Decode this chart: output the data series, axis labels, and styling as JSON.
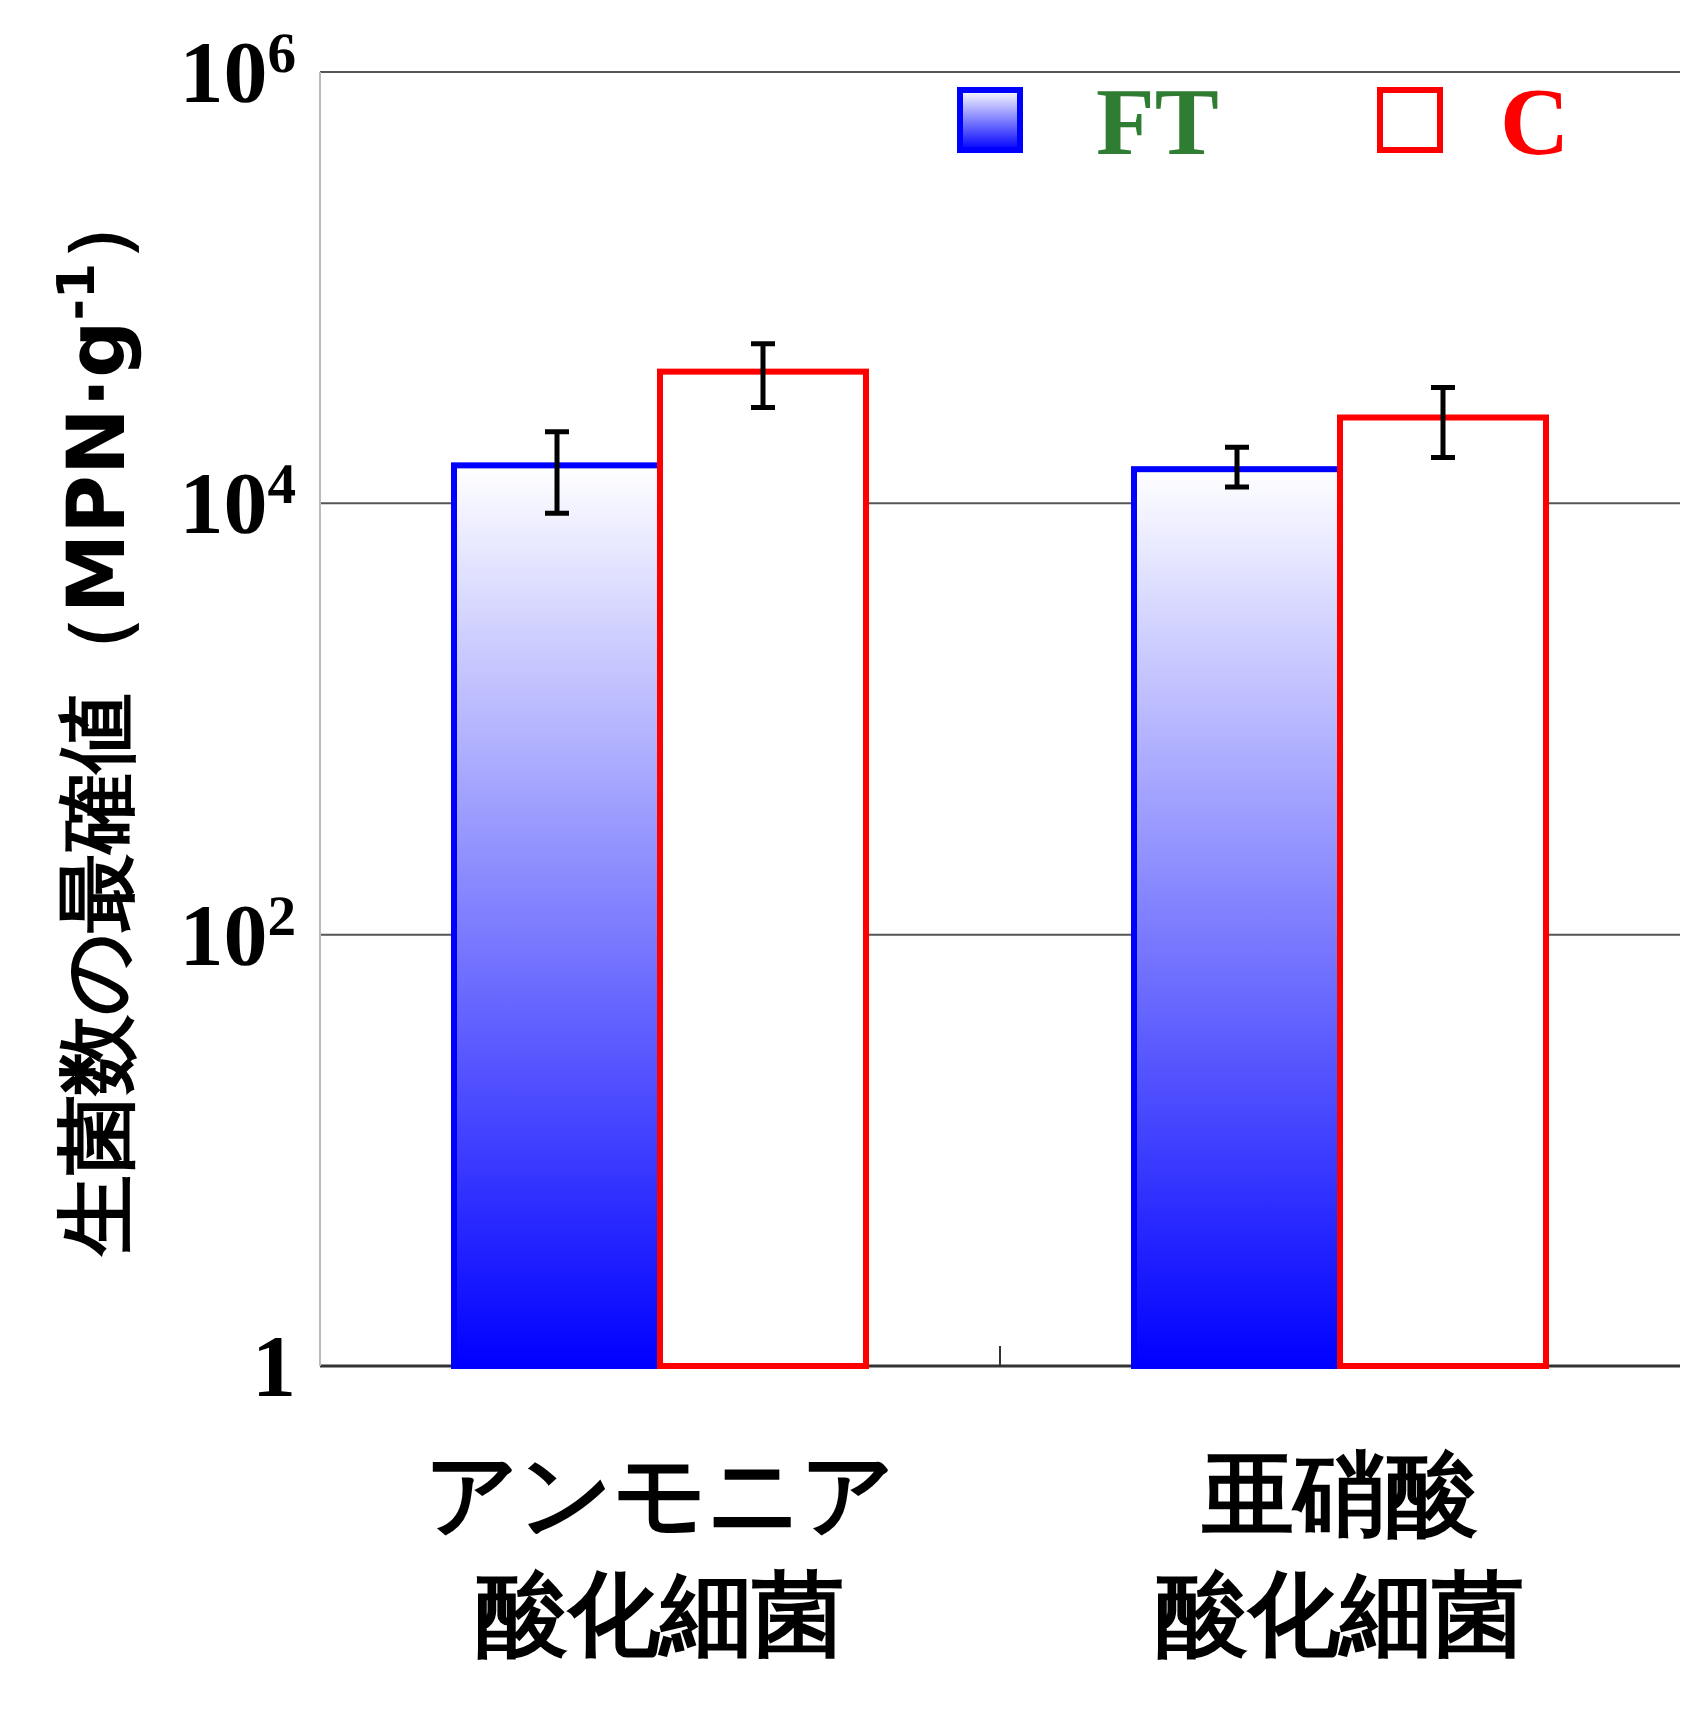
{
  "chart_data": {
    "type": "bar",
    "ylabel": "生菌数の最確値（MPN·g$^{-1}$）",
    "categories": [
      "アンモニア酸化細菌",
      "亜硝酸酸化細菌"
    ],
    "series": [
      {
        "name": "FT",
        "color": "#0000ff",
        "values": [
          15000,
          14400
        ],
        "errors": [
          [
            9000,
            21500
          ],
          [
            11900,
            18200
          ]
        ]
      },
      {
        "name": "C",
        "color": "#ff0000",
        "values": [
          40800,
          25000
        ],
        "errors": [
          [
            27800,
            55000
          ],
          [
            16300,
            34400
          ]
        ]
      }
    ],
    "log": "y",
    "ylim": [
      1,
      1000000
    ],
    "yticks": [
      {
        "value": 1,
        "label": "1"
      },
      {
        "value": 100,
        "label": "10$^{2}$"
      },
      {
        "value": 10000,
        "label": "10$^{4}$"
      },
      {
        "value": 1000000,
        "label": "10$^{6}$"
      }
    ],
    "grid": "y",
    "legend": "top right"
  }
}
